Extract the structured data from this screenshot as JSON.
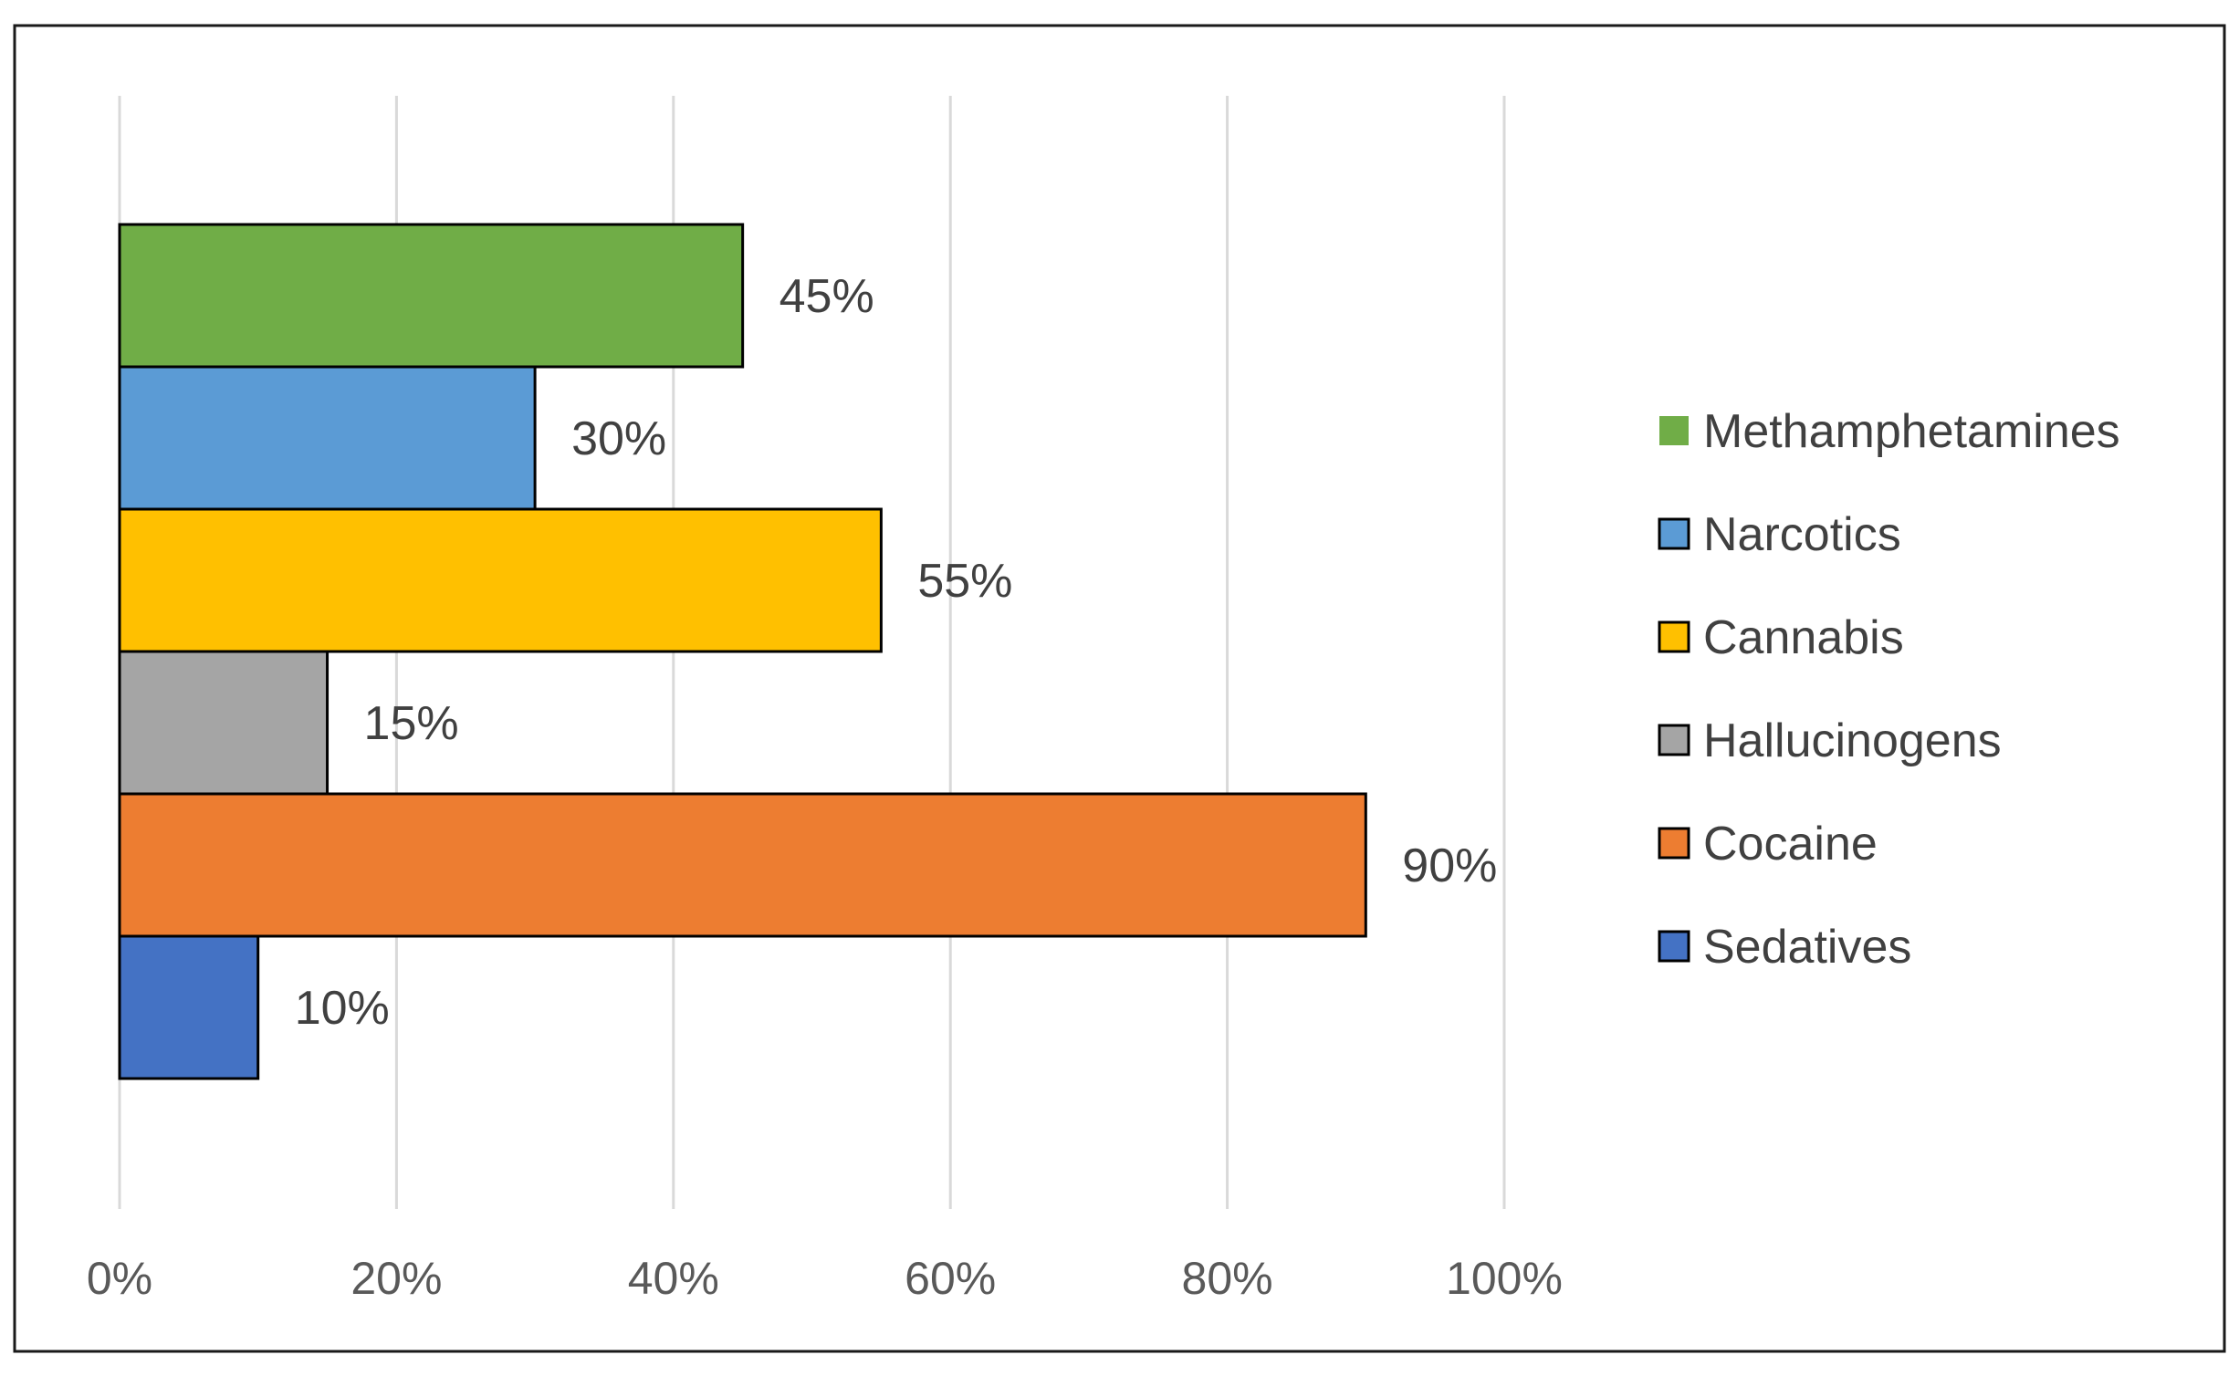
{
  "chart_data": {
    "type": "bar",
    "orientation": "horizontal",
    "title": "",
    "xlabel": "",
    "ylabel": "",
    "xlim": [
      0,
      100
    ],
    "x_ticks": [
      "0%",
      "20%",
      "40%",
      "60%",
      "80%",
      "100%"
    ],
    "grid": "vertical",
    "legend_position": "right",
    "series": [
      {
        "name": "Methamphetamines",
        "value": 45,
        "label": "45%",
        "color": "#70AD47"
      },
      {
        "name": "Narcotics",
        "value": 30,
        "label": "30%",
        "color": "#5B9BD5"
      },
      {
        "name": "Cannabis",
        "value": 55,
        "label": "55%",
        "color": "#FFC000"
      },
      {
        "name": "Hallucinogens",
        "value": 15,
        "label": "15%",
        "color": "#A5A5A5"
      },
      {
        "name": "Cocaine",
        "value": 90,
        "label": "90%",
        "color": "#ED7D31"
      },
      {
        "name": "Sedatives",
        "value": 10,
        "label": "10%",
        "color": "#4472C4"
      }
    ]
  }
}
